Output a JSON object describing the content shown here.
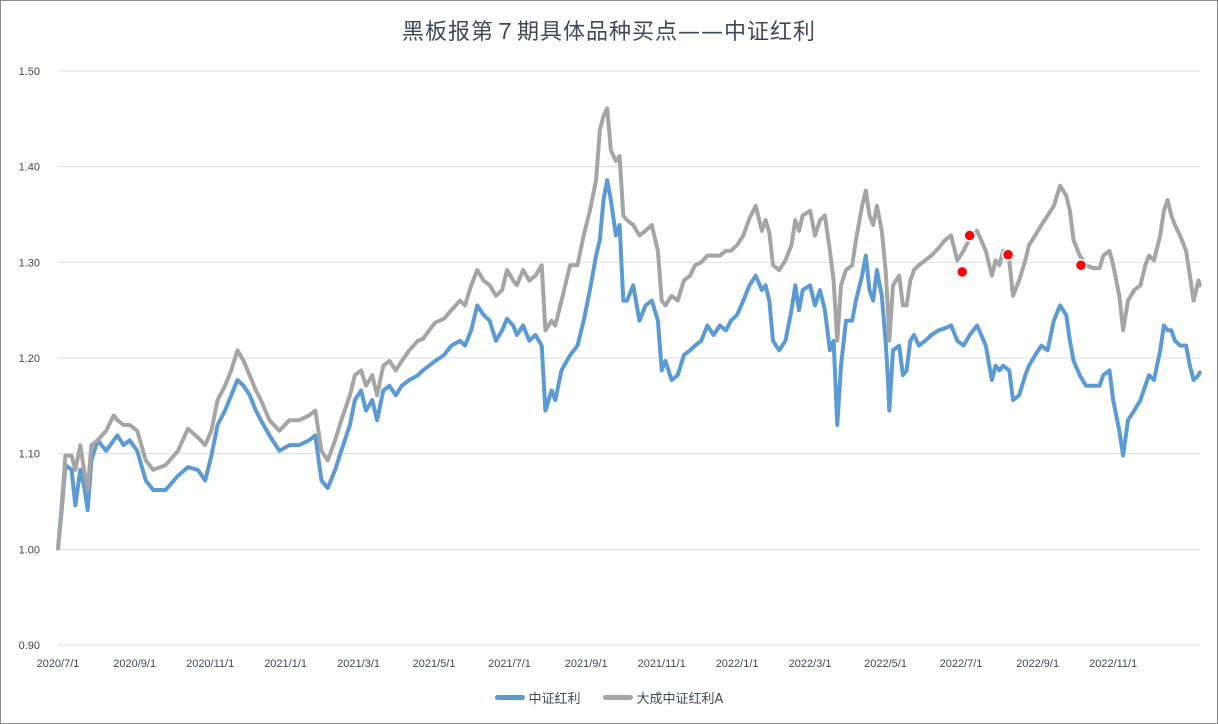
{
  "chart_data": {
    "type": "line",
    "title": "黑板报第７期具体品种买点——中证红利",
    "xlabel": "",
    "ylabel": "",
    "ylim": [
      0.9,
      1.5
    ],
    "yticks": [
      "0.90",
      "1.00",
      "1.10",
      "1.20",
      "1.30",
      "1.40",
      "1.50"
    ],
    "xticks": [
      "2020/7/1",
      "2020/9/1",
      "2020/11/1",
      "2021/1/1",
      "2021/3/1",
      "2021/5/1",
      "2021/7/1",
      "2021/9/1",
      "2021/11/1",
      "2022/1/1",
      "2022/3/1",
      "2022/5/1",
      "2022/7/1",
      "2022/9/1",
      "2022/11/1"
    ],
    "grid": true,
    "legend_position": "bottom",
    "x": [
      "2020-07-01",
      "2020-07-04",
      "2020-07-07",
      "2020-07-12",
      "2020-07-15",
      "2020-07-19",
      "2020-07-22",
      "2020-07-25",
      "2020-07-28",
      "2020-08-02",
      "2020-08-09",
      "2020-08-15",
      "2020-08-18",
      "2020-08-23",
      "2020-08-28",
      "2020-09-03",
      "2020-09-10",
      "2020-09-16",
      "2020-09-26",
      "2020-10-06",
      "2020-10-14",
      "2020-10-22",
      "2020-10-28",
      "2020-11-02",
      "2020-11-07",
      "2020-11-13",
      "2020-11-18",
      "2020-11-23",
      "2020-11-28",
      "2020-12-03",
      "2020-12-08",
      "2020-12-12",
      "2020-12-19",
      "2020-12-27",
      "2021-01-04",
      "2021-01-12",
      "2021-01-20",
      "2021-01-25",
      "2021-01-30",
      "2021-02-04",
      "2021-02-10",
      "2021-02-15",
      "2021-02-22",
      "2021-02-26",
      "2021-03-03",
      "2021-03-07",
      "2021-03-12",
      "2021-03-16",
      "2021-03-21",
      "2021-03-26",
      "2021-03-31",
      "2021-04-05",
      "2021-04-11",
      "2021-04-18",
      "2021-04-22",
      "2021-04-27",
      "2021-05-02",
      "2021-05-09",
      "2021-05-15",
      "2021-05-22",
      "2021-05-26",
      "2021-05-31",
      "2021-06-05",
      "2021-06-10",
      "2021-06-15",
      "2021-06-20",
      "2021-06-25",
      "2021-06-29",
      "2021-07-04",
      "2021-07-07",
      "2021-07-12",
      "2021-07-17",
      "2021-07-22",
      "2021-07-27",
      "2021-07-30",
      "2021-08-04",
      "2021-08-07",
      "2021-08-12",
      "2021-08-19",
      "2021-08-25",
      "2021-08-30",
      "2021-09-04",
      "2021-09-09",
      "2021-09-12",
      "2021-09-15",
      "2021-09-18",
      "2021-09-21",
      "2021-09-25",
      "2021-09-28",
      "2021-10-01",
      "2021-10-04",
      "2021-10-09",
      "2021-10-14",
      "2021-10-19",
      "2021-10-24",
      "2021-10-29",
      "2021-11-01",
      "2021-11-04",
      "2021-11-09",
      "2021-11-14",
      "2021-11-19",
      "2021-11-24",
      "2021-11-28",
      "2021-12-03",
      "2021-12-08",
      "2021-12-13",
      "2021-12-18",
      "2021-12-23",
      "2021-12-27",
      "2022-01-01",
      "2022-01-06",
      "2022-01-11",
      "2022-01-16",
      "2022-01-21",
      "2022-01-24",
      "2022-01-27",
      "2022-01-30",
      "2022-02-04",
      "2022-02-09",
      "2022-02-14",
      "2022-02-17",
      "2022-02-20",
      "2022-02-23",
      "2022-03-01",
      "2022-03-05",
      "2022-03-09",
      "2022-03-13",
      "2022-03-17",
      "2022-03-20",
      "2022-03-23",
      "2022-03-26",
      "2022-03-30",
      "2022-04-04",
      "2022-04-07",
      "2022-04-12",
      "2022-04-15",
      "2022-04-18",
      "2022-04-21",
      "2022-04-24",
      "2022-04-28",
      "2022-05-01",
      "2022-05-03",
      "2022-05-04",
      "2022-05-07",
      "2022-05-12",
      "2022-05-15",
      "2022-05-18",
      "2022-05-21",
      "2022-05-24",
      "2022-05-28",
      "2022-06-02",
      "2022-06-07",
      "2022-06-13",
      "2022-06-18",
      "2022-06-23",
      "2022-06-28",
      "2022-07-03",
      "2022-07-08",
      "2022-07-14",
      "2022-07-21",
      "2022-07-26",
      "2022-07-29",
      "2022-08-01",
      "2022-08-04",
      "2022-08-09",
      "2022-08-12",
      "2022-08-17",
      "2022-08-22",
      "2022-08-25",
      "2022-08-30",
      "2022-09-04",
      "2022-09-09",
      "2022-09-14",
      "2022-09-19",
      "2022-09-24",
      "2022-09-27",
      "2022-09-30",
      "2022-10-05",
      "2022-10-10",
      "2022-10-16",
      "2022-10-21",
      "2022-10-24",
      "2022-10-29",
      "2022-11-01",
      "2022-11-06",
      "2022-11-09",
      "2022-11-13",
      "2022-11-18",
      "2022-11-23",
      "2022-11-27",
      "2022-11-30",
      "2022-12-04",
      "2022-12-09",
      "2022-12-12",
      "2022-12-15",
      "2022-12-18",
      "2022-12-21",
      "2022-12-25",
      "2022-12-30",
      "2023-01-02",
      "2023-01-05",
      "2023-01-09",
      "2023-01-10"
    ],
    "series": [
      {
        "name": "中证红利",
        "color": "#5b9bd5",
        "values": [
          1.001,
          1.041,
          1.088,
          1.083,
          1.046,
          1.083,
          1.067,
          1.041,
          1.093,
          1.114,
          1.103,
          1.114,
          1.119,
          1.109,
          1.114,
          1.103,
          1.072,
          1.062,
          1.062,
          1.077,
          1.086,
          1.083,
          1.072,
          1.098,
          1.13,
          1.145,
          1.161,
          1.177,
          1.171,
          1.161,
          1.145,
          1.135,
          1.119,
          1.103,
          1.109,
          1.109,
          1.114,
          1.119,
          1.072,
          1.064,
          1.083,
          1.103,
          1.13,
          1.156,
          1.166,
          1.145,
          1.156,
          1.135,
          1.166,
          1.171,
          1.161,
          1.171,
          1.177,
          1.182,
          1.187,
          1.192,
          1.197,
          1.203,
          1.213,
          1.218,
          1.213,
          1.229,
          1.255,
          1.245,
          1.239,
          1.218,
          1.229,
          1.241,
          1.234,
          1.224,
          1.234,
          1.218,
          1.224,
          1.213,
          1.145,
          1.166,
          1.156,
          1.187,
          1.203,
          1.213,
          1.239,
          1.271,
          1.307,
          1.323,
          1.365,
          1.386,
          1.365,
          1.328,
          1.339,
          1.26,
          1.26,
          1.276,
          1.239,
          1.255,
          1.26,
          1.239,
          1.187,
          1.197,
          1.177,
          1.182,
          1.203,
          1.208,
          1.213,
          1.218,
          1.234,
          1.224,
          1.234,
          1.229,
          1.239,
          1.245,
          1.26,
          1.276,
          1.286,
          1.271,
          1.276,
          1.26,
          1.218,
          1.208,
          1.218,
          1.25,
          1.276,
          1.25,
          1.271,
          1.276,
          1.255,
          1.271,
          1.25,
          1.208,
          1.218,
          1.13,
          1.192,
          1.239,
          1.239,
          1.26,
          1.286,
          1.307,
          1.271,
          1.26,
          1.292,
          1.265,
          1.218,
          1.177,
          1.145,
          1.208,
          1.213,
          1.182,
          1.187,
          1.218,
          1.224,
          1.213,
          1.218,
          1.224,
          1.229,
          1.231,
          1.234,
          1.218,
          1.213,
          1.224,
          1.234,
          1.213,
          1.177,
          1.192,
          1.187,
          1.192,
          1.187,
          1.156,
          1.161,
          1.182,
          1.192,
          1.203,
          1.213,
          1.208,
          1.239,
          1.255,
          1.245,
          1.218,
          1.197,
          1.182,
          1.171,
          1.171,
          1.171,
          1.182,
          1.187,
          1.156,
          1.124,
          1.098,
          1.135,
          1.145,
          1.156,
          1.171,
          1.182,
          1.177,
          1.208,
          1.234,
          1.229,
          1.229,
          1.218,
          1.213,
          1.213,
          1.192,
          1.177,
          1.182,
          1.185
        ]
      },
      {
        "name": "大成中证红利A",
        "color": "#a5a5a5",
        "values": [
          1.001,
          1.046,
          1.098,
          1.098,
          1.083,
          1.109,
          1.083,
          1.062,
          1.109,
          1.114,
          1.124,
          1.14,
          1.135,
          1.13,
          1.13,
          1.124,
          1.093,
          1.083,
          1.088,
          1.103,
          1.126,
          1.117,
          1.109,
          1.124,
          1.156,
          1.171,
          1.187,
          1.208,
          1.197,
          1.182,
          1.166,
          1.156,
          1.135,
          1.124,
          1.135,
          1.135,
          1.14,
          1.145,
          1.103,
          1.093,
          1.114,
          1.135,
          1.161,
          1.182,
          1.187,
          1.171,
          1.182,
          1.161,
          1.192,
          1.197,
          1.187,
          1.197,
          1.208,
          1.218,
          1.22,
          1.229,
          1.237,
          1.241,
          1.25,
          1.26,
          1.255,
          1.276,
          1.292,
          1.281,
          1.276,
          1.265,
          1.271,
          1.292,
          1.281,
          1.276,
          1.292,
          1.281,
          1.286,
          1.297,
          1.229,
          1.239,
          1.234,
          1.26,
          1.297,
          1.297,
          1.328,
          1.354,
          1.386,
          1.438,
          1.453,
          1.461,
          1.417,
          1.406,
          1.411,
          1.349,
          1.344,
          1.339,
          1.328,
          1.333,
          1.339,
          1.312,
          1.26,
          1.255,
          1.265,
          1.26,
          1.281,
          1.286,
          1.297,
          1.3,
          1.307,
          1.307,
          1.307,
          1.312,
          1.312,
          1.318,
          1.328,
          1.346,
          1.359,
          1.333,
          1.344,
          1.331,
          1.297,
          1.292,
          1.302,
          1.318,
          1.344,
          1.333,
          1.349,
          1.354,
          1.328,
          1.344,
          1.349,
          1.312,
          1.281,
          1.218,
          1.276,
          1.292,
          1.297,
          1.323,
          1.359,
          1.375,
          1.349,
          1.339,
          1.359,
          1.333,
          1.292,
          1.25,
          1.218,
          1.276,
          1.286,
          1.255,
          1.255,
          1.281,
          1.292,
          1.297,
          1.302,
          1.307,
          1.315,
          1.323,
          1.328,
          1.302,
          1.312,
          1.325,
          1.333,
          1.312,
          1.286,
          1.302,
          1.297,
          1.312,
          1.302,
          1.265,
          1.281,
          1.302,
          1.318,
          1.328,
          1.339,
          1.349,
          1.359,
          1.38,
          1.37,
          1.354,
          1.323,
          1.307,
          1.297,
          1.294,
          1.294,
          1.307,
          1.312,
          1.297,
          1.265,
          1.229,
          1.26,
          1.271,
          1.276,
          1.297,
          1.307,
          1.302,
          1.328,
          1.354,
          1.365,
          1.349,
          1.339,
          1.328,
          1.312,
          1.286,
          1.26,
          1.281,
          1.276
        ]
      }
    ],
    "markers": {
      "color": "#ff0000",
      "points": [
        {
          "x": "2022-07-02",
          "y": 1.29
        },
        {
          "x": "2022-07-08",
          "y": 1.328
        },
        {
          "x": "2022-08-08",
          "y": 1.308
        },
        {
          "x": "2022-10-06",
          "y": 1.297
        }
      ]
    }
  }
}
